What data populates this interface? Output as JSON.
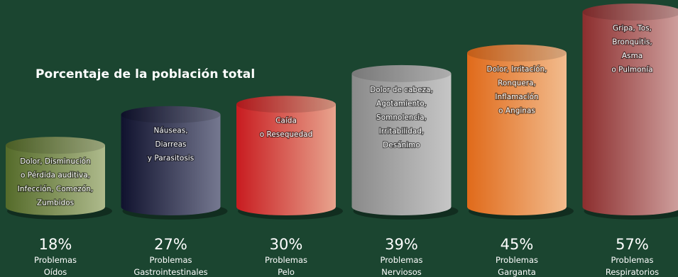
{
  "title": "Porcentaje de la población total",
  "chart_data": {
    "type": "bar",
    "title": "Porcentaje de la población total",
    "unit": "%",
    "ylim": [
      0,
      57
    ],
    "categories": [
      "Problemas Oídos",
      "Problemas Gastrointestinales",
      "Problemas Pelo",
      "Problemas Nerviosos",
      "Problemas Garganta",
      "Problemas Respiratorios"
    ],
    "values": [
      18,
      27,
      30,
      39,
      45,
      57
    ],
    "value_labels": [
      "18%",
      "27%",
      "30%",
      "39%",
      "45%",
      "57%"
    ],
    "category_lines": [
      [
        "Problemas",
        "Oídos"
      ],
      [
        "Problemas",
        "Gastrointestinales"
      ],
      [
        "Problemas",
        "Pelo"
      ],
      [
        "Problemas",
        "Nerviosos"
      ],
      [
        "Problemas",
        "Garganta"
      ],
      [
        "Problemas",
        "Respiratorios"
      ]
    ],
    "annotations": [
      [
        "Dolor, Disminución",
        "o Pérdida auditiva,",
        "Infección, Comezón,",
        "Zumbidos"
      ],
      [
        "Náuseas,",
        "Diarreas",
        "y Parasitosis"
      ],
      [
        "Caída",
        "o Resequedad"
      ],
      [
        "Dolor de cabeza,",
        "Agotamiento,",
        "Somnolencia,",
        "Irritabilidad,",
        "Desánimo"
      ],
      [
        "Dolor, Irritación,",
        "Ronquera,",
        "Inflamación",
        "o Anginas"
      ],
      [
        "Gripa, Tos,",
        "Bronquitis,",
        "Asma",
        "o Pulmonía"
      ]
    ],
    "colors": [
      [
        "#556b2a",
        "#aeba8c"
      ],
      [
        "#10122e",
        "#757890"
      ],
      [
        "#c81c20",
        "#e8a48e"
      ],
      [
        "#8a8a8a",
        "#c6c6c6"
      ],
      [
        "#e06a1a",
        "#f2bc8e"
      ],
      [
        "#8c2e2e",
        "#d0a2a0"
      ]
    ],
    "background": "#1b4530"
  }
}
